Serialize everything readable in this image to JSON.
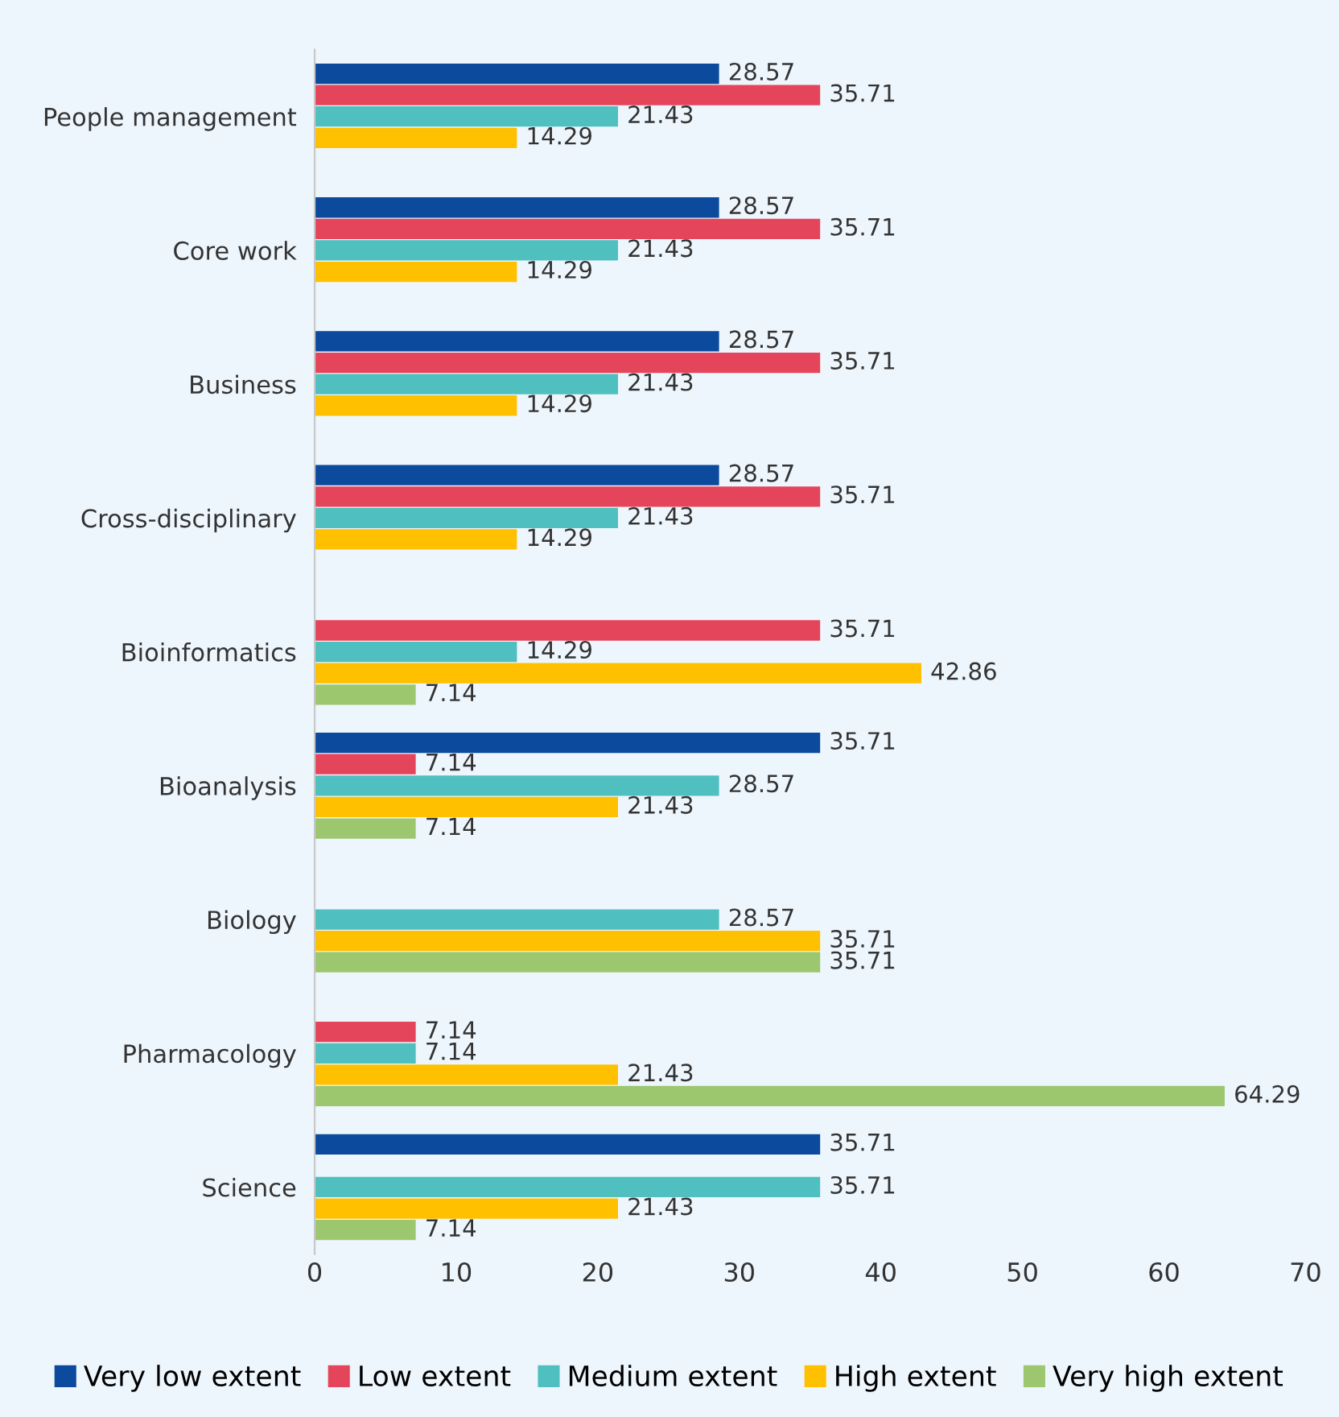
{
  "chart_data": {
    "type": "bar",
    "orientation": "horizontal",
    "categories": [
      "People management",
      "Core work",
      "Business",
      "Cross-disciplinary",
      "Bioinformatics",
      "Bioanalysis",
      "Biology",
      "Pharmacology",
      "Science"
    ],
    "series": [
      {
        "name": "Very low extent",
        "color": "#0b4a9c",
        "values": [
          28.57,
          28.57,
          28.57,
          28.57,
          null,
          35.71,
          null,
          null,
          35.71
        ]
      },
      {
        "name": "Low extent",
        "color": "#e5455a",
        "values": [
          35.71,
          35.71,
          35.71,
          35.71,
          35.71,
          7.14,
          null,
          7.14,
          null
        ]
      },
      {
        "name": "Medium extent",
        "color": "#4fbfbf",
        "values": [
          21.43,
          21.43,
          21.43,
          21.43,
          14.29,
          28.57,
          28.57,
          7.14,
          35.71
        ]
      },
      {
        "name": "High extent",
        "color": "#ffc000",
        "values": [
          14.29,
          14.29,
          14.29,
          14.29,
          42.86,
          21.43,
          35.71,
          21.43,
          21.43
        ]
      },
      {
        "name": "Very high extent",
        "color": "#9dc76f",
        "values": [
          null,
          null,
          null,
          null,
          7.14,
          7.14,
          35.71,
          64.29,
          7.14
        ]
      }
    ],
    "xlim": [
      0,
      70
    ],
    "xticks": [
      0,
      10,
      20,
      30,
      40,
      50,
      60,
      70
    ],
    "data_labels": true,
    "legend": "bottom",
    "grid": false
  }
}
